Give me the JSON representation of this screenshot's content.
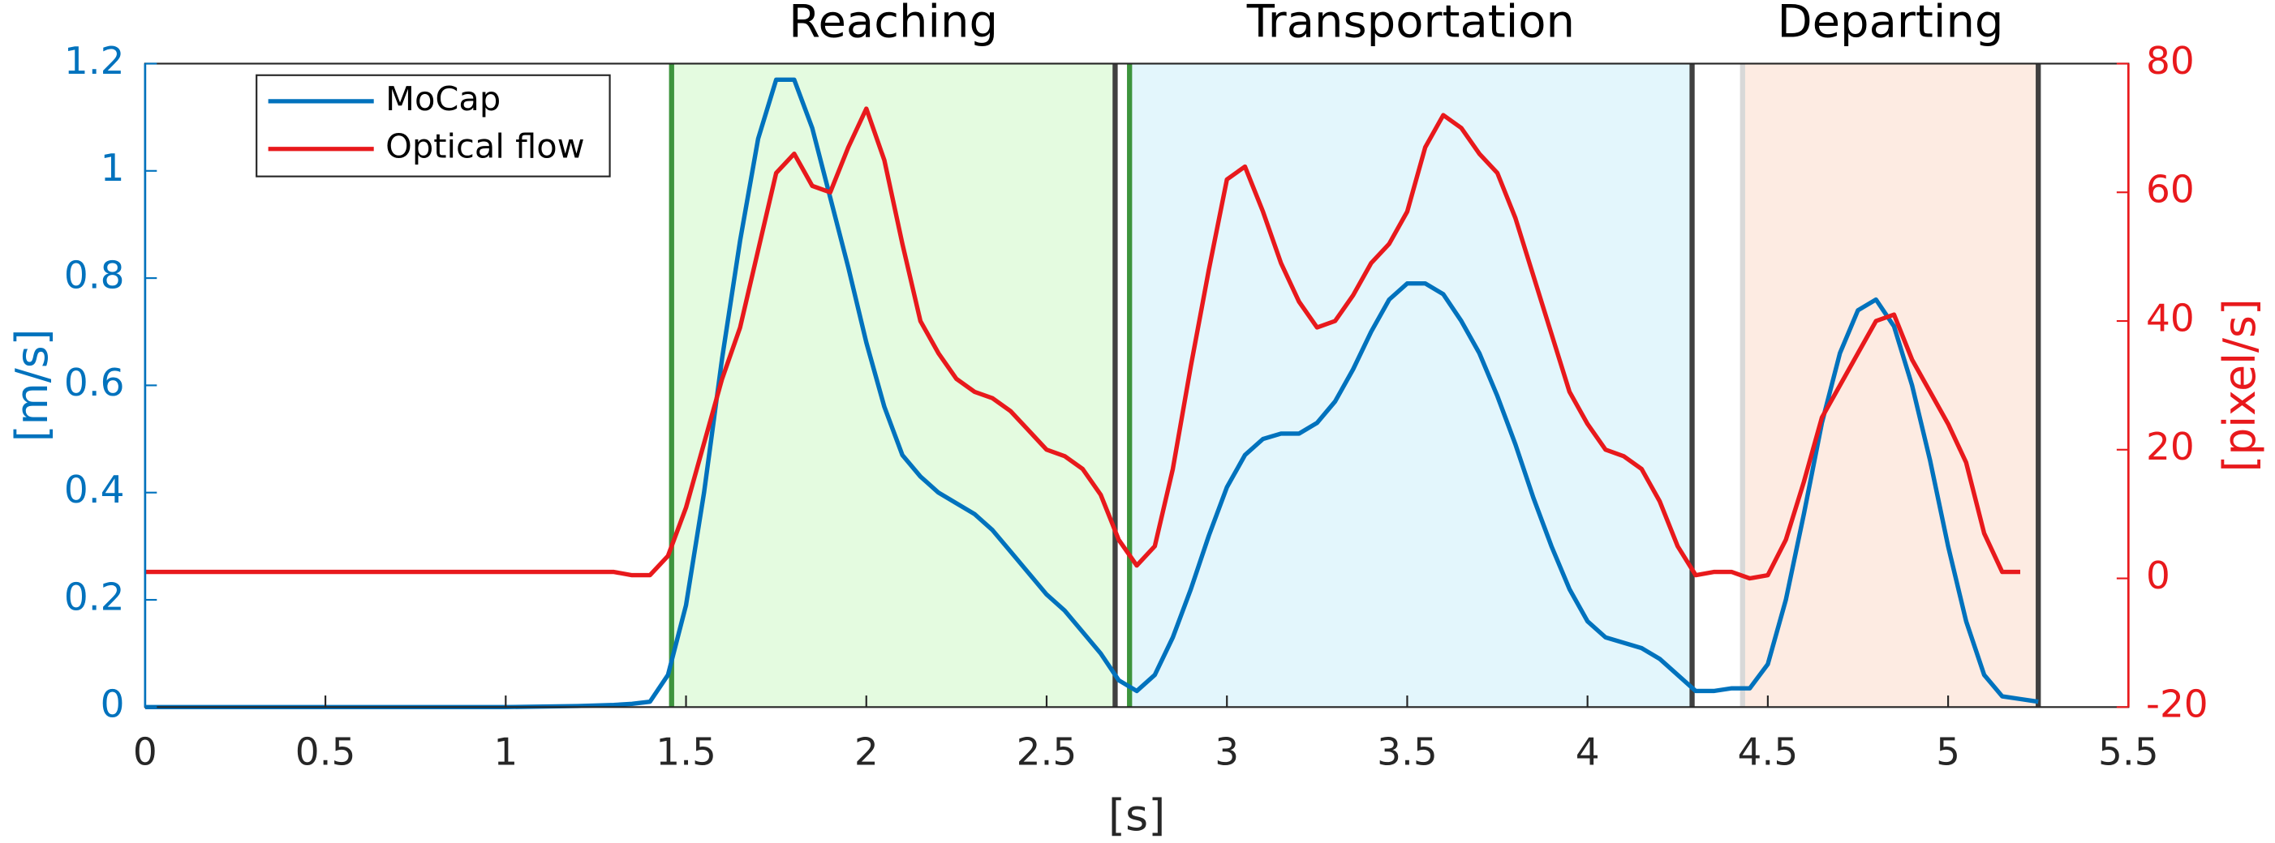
{
  "chart_data": {
    "type": "line",
    "xlabel": "[s]",
    "ylabel": "[m/s]",
    "y2label": "[pixel/s]",
    "xlim": [
      0,
      5.5
    ],
    "xticks": [
      0,
      0.5,
      1,
      1.5,
      2,
      2.5,
      3,
      3.5,
      4,
      4.5,
      5,
      5.5
    ],
    "ylim": [
      0,
      1.2
    ],
    "yticks": [
      0,
      0.2,
      0.4,
      0.6,
      0.8,
      1,
      1.2
    ],
    "y2lim": [
      -20,
      80
    ],
    "y2ticks": [
      -20,
      0,
      20,
      40,
      60,
      80
    ],
    "legend": "north-west",
    "phases": [
      {
        "label": "Reaching",
        "start": 1.46,
        "end": 2.69,
        "color": "#e4fbe0"
      },
      {
        "label": "Transportation",
        "start": 2.73,
        "end": 4.29,
        "color": "#e3f6fc"
      },
      {
        "label": "Departing",
        "start": 4.43,
        "end": 5.25,
        "color": "#fdebe2"
      }
    ],
    "markers": [
      {
        "x": 1.46,
        "color": "#3d943d"
      },
      {
        "x": 2.69,
        "color": "#404040"
      },
      {
        "x": 2.73,
        "color": "#3d943d"
      },
      {
        "x": 4.29,
        "color": "#404040"
      },
      {
        "x": 4.43,
        "color": "#d8d8d8"
      },
      {
        "x": 5.25,
        "color": "#404040"
      }
    ],
    "x": [
      0,
      0.25,
      0.5,
      0.75,
      1,
      1.2,
      1.3,
      1.35,
      1.4,
      1.45,
      1.5,
      1.55,
      1.6,
      1.65,
      1.7,
      1.75,
      1.8,
      1.85,
      1.9,
      1.95,
      2,
      2.05,
      2.1,
      2.15,
      2.2,
      2.25,
      2.3,
      2.35,
      2.4,
      2.45,
      2.5,
      2.55,
      2.6,
      2.65,
      2.7,
      2.75,
      2.8,
      2.85,
      2.9,
      2.95,
      3,
      3.05,
      3.1,
      3.15,
      3.2,
      3.25,
      3.3,
      3.35,
      3.4,
      3.45,
      3.5,
      3.55,
      3.6,
      3.65,
      3.7,
      3.75,
      3.8,
      3.85,
      3.9,
      3.95,
      4,
      4.05,
      4.1,
      4.15,
      4.2,
      4.25,
      4.3,
      4.35,
      4.4,
      4.45,
      4.5,
      4.55,
      4.6,
      4.65,
      4.7,
      4.75,
      4.8,
      4.85,
      4.9,
      4.95,
      5,
      5.05,
      5.1,
      5.15,
      5.2,
      5.25
    ],
    "series": [
      {
        "name": "MoCap",
        "color": "#0072bd",
        "values": [
          0,
          0,
          0,
          0,
          0,
          0.002,
          0.004,
          0.006,
          0.01,
          0.06,
          0.19,
          0.4,
          0.65,
          0.87,
          1.06,
          1.17,
          1.17,
          1.08,
          0.95,
          0.82,
          0.68,
          0.56,
          0.47,
          0.43,
          0.4,
          0.38,
          0.36,
          0.33,
          0.29,
          0.25,
          0.21,
          0.18,
          0.14,
          0.1,
          0.05,
          0.03,
          0.06,
          0.13,
          0.22,
          0.32,
          0.41,
          0.47,
          0.5,
          0.51,
          0.51,
          0.53,
          0.57,
          0.63,
          0.7,
          0.76,
          0.79,
          0.79,
          0.77,
          0.72,
          0.66,
          0.58,
          0.49,
          0.39,
          0.3,
          0.22,
          0.16,
          0.13,
          0.12,
          0.11,
          0.09,
          0.06,
          0.03,
          0.03,
          0.035,
          0.035,
          0.08,
          0.2,
          0.36,
          0.53,
          0.66,
          0.74,
          0.76,
          0.71,
          0.6,
          0.46,
          0.3,
          0.16,
          0.06,
          0.02,
          0.015,
          0.01
        ]
      },
      {
        "name": "Optical flow",
        "color": "#e8191c",
        "axis": "y2",
        "values": [
          1,
          1,
          1,
          1,
          1,
          1,
          1,
          0.5,
          0.5,
          3.5,
          11,
          21,
          31,
          39,
          51,
          63,
          66,
          61,
          60,
          67,
          73,
          65,
          52,
          40,
          35,
          31,
          29,
          28,
          26,
          23,
          20,
          19,
          17,
          13,
          6,
          2,
          5,
          17,
          33,
          48,
          62,
          64,
          57,
          49,
          43,
          39,
          40,
          44,
          49,
          52,
          57,
          67,
          72,
          70,
          66,
          63,
          56,
          47,
          38,
          29,
          24,
          20,
          19,
          17,
          12,
          5,
          0.5,
          1,
          1,
          0,
          0.5,
          6,
          15,
          25,
          30,
          35,
          40,
          41,
          34,
          29,
          24,
          18,
          7,
          1,
          1,
          null
        ]
      }
    ]
  }
}
